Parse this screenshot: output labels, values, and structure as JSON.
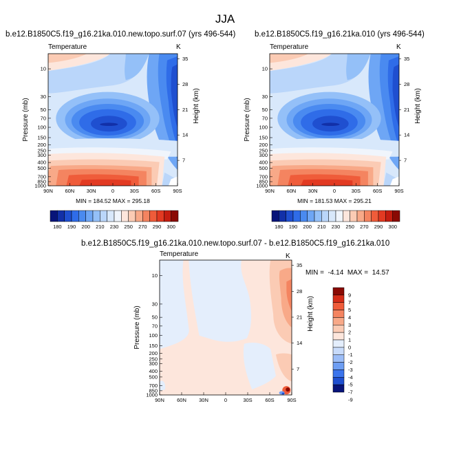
{
  "figure": {
    "title": "JJA"
  },
  "colors": {
    "temperature_scale": [
      "#08147a",
      "#1230a8",
      "#1f4fd0",
      "#2f6ce8",
      "#4a8af0",
      "#6ea6f5",
      "#94c0f8",
      "#bad6fa",
      "#d8e8fb",
      "#f0f5fc",
      "#fde6dc",
      "#fbcbb4",
      "#f8a988",
      "#f48460",
      "#ef5c3a",
      "#e23a22",
      "#c41d10",
      "#8a0a04"
    ],
    "difference_scale": [
      "#08147a",
      "#1f4fd0",
      "#3b74ec",
      "#6e9ef3",
      "#9cbdf7",
      "#c8dbfa",
      "#e4eefc",
      "#fde6dc",
      "#fbcbb4",
      "#f8a988",
      "#f48460",
      "#ef5c3a",
      "#d52c18",
      "#8a0a04"
    ]
  },
  "chart_data": [
    {
      "type": "heatmap",
      "title": "b.e12.B1850C5.f19_g16.21ka.010.new.topo.surf.07 (yrs 496-544)",
      "left_label": "Temperature",
      "unit_label": "K",
      "ylabel": "Pressure (mb)",
      "right_label": "Height (km)",
      "x_ticks": [
        "90N",
        "60N",
        "30N",
        "0",
        "30S",
        "60S",
        "90S"
      ],
      "y_ticks": [
        "10",
        "30",
        "50",
        "70",
        "100",
        "150",
        "200",
        "250",
        "300",
        "400",
        "500",
        "700",
        "850",
        "1000"
      ],
      "height_ticks": [
        "35",
        "28",
        "21",
        "14",
        "7"
      ],
      "stats": "MIN = 184.52  MAX = 295.18",
      "colorbar_labels": [
        "180",
        "190",
        "200",
        "210",
        "230",
        "250",
        "270",
        "290",
        "300"
      ],
      "min": 184.52,
      "max": 295.18
    },
    {
      "type": "heatmap",
      "title": "b.e12.B1850C5.f19_g16.21ka.010 (yrs 496-544)",
      "left_label": "Temperature",
      "unit_label": "K",
      "ylabel": "Pressure (mb)",
      "right_label": "Height (km)",
      "x_ticks": [
        "90N",
        "60N",
        "30N",
        "0",
        "30S",
        "60S",
        "90S"
      ],
      "y_ticks": [
        "10",
        "30",
        "50",
        "70",
        "100",
        "150",
        "200",
        "250",
        "300",
        "400",
        "500",
        "700",
        "850",
        "1000"
      ],
      "height_ticks": [
        "35",
        "28",
        "21",
        "14",
        "7"
      ],
      "stats": "MIN = 181.53  MAX = 295.21",
      "colorbar_labels": [
        "180",
        "190",
        "200",
        "210",
        "230",
        "250",
        "270",
        "290",
        "300"
      ],
      "min": 181.53,
      "max": 295.21
    },
    {
      "type": "heatmap",
      "title": "b.e12.B1850C5.f19_g16.21ka.010.new.topo.surf.07 - b.e12.B1850C5.f19_g16.21ka.010",
      "left_label": "Temperature",
      "unit_label": "K",
      "ylabel": "Pressure (mb)",
      "right_label": "Height (km)",
      "x_ticks": [
        "90N",
        "60N",
        "30N",
        "0",
        "30S",
        "60S",
        "90S"
      ],
      "y_ticks": [
        "10",
        "30",
        "50",
        "70",
        "100",
        "150",
        "200",
        "250",
        "300",
        "400",
        "500",
        "700",
        "850",
        "1000"
      ],
      "height_ticks": [
        "35",
        "28",
        "21",
        "14",
        "7"
      ],
      "stats": "MIN =  -4.14  MAX =  14.57",
      "colorbar_labels": [
        "9",
        "7",
        "5",
        "4",
        "3",
        "2",
        "1",
        "0",
        "-1",
        "-2",
        "-3",
        "-4",
        "-5",
        "-7",
        "-9"
      ],
      "min": -4.14,
      "max": 14.57
    }
  ]
}
